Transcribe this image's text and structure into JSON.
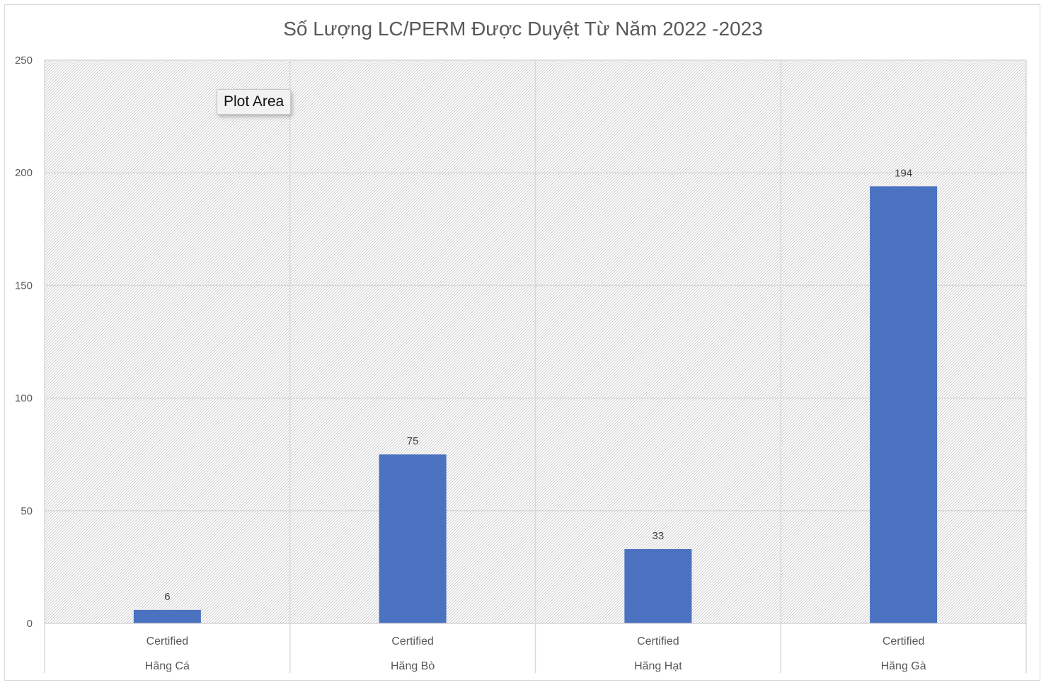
{
  "chart_data": {
    "type": "bar",
    "title": "Số Lượng LC/PERM Được Duyệt Từ Năm 2022 -2023",
    "xlabel": "",
    "ylabel": "",
    "ylim": [
      0,
      250
    ],
    "yticks": [
      "0",
      "50",
      "100",
      "150",
      "200",
      "250"
    ],
    "categories": [
      {
        "sub": "Certified",
        "group": "Hãng Cá"
      },
      {
        "sub": "Certified",
        "group": "Hãng Bò"
      },
      {
        "sub": "Certified",
        "group": "Hãng Hạt"
      },
      {
        "sub": "Certified",
        "group": "Hãng Gà"
      }
    ],
    "series": [
      {
        "values": [
          6,
          75,
          33,
          194
        ],
        "color": "#4a72c0"
      }
    ],
    "data_labels": [
      "6",
      "75",
      "33",
      "194"
    ],
    "grid": true,
    "legend": "none",
    "plot_pattern": "diagonal-hatch",
    "grid_color": "#d9d9d9"
  },
  "tooltip": {
    "label": "Plot Area"
  }
}
